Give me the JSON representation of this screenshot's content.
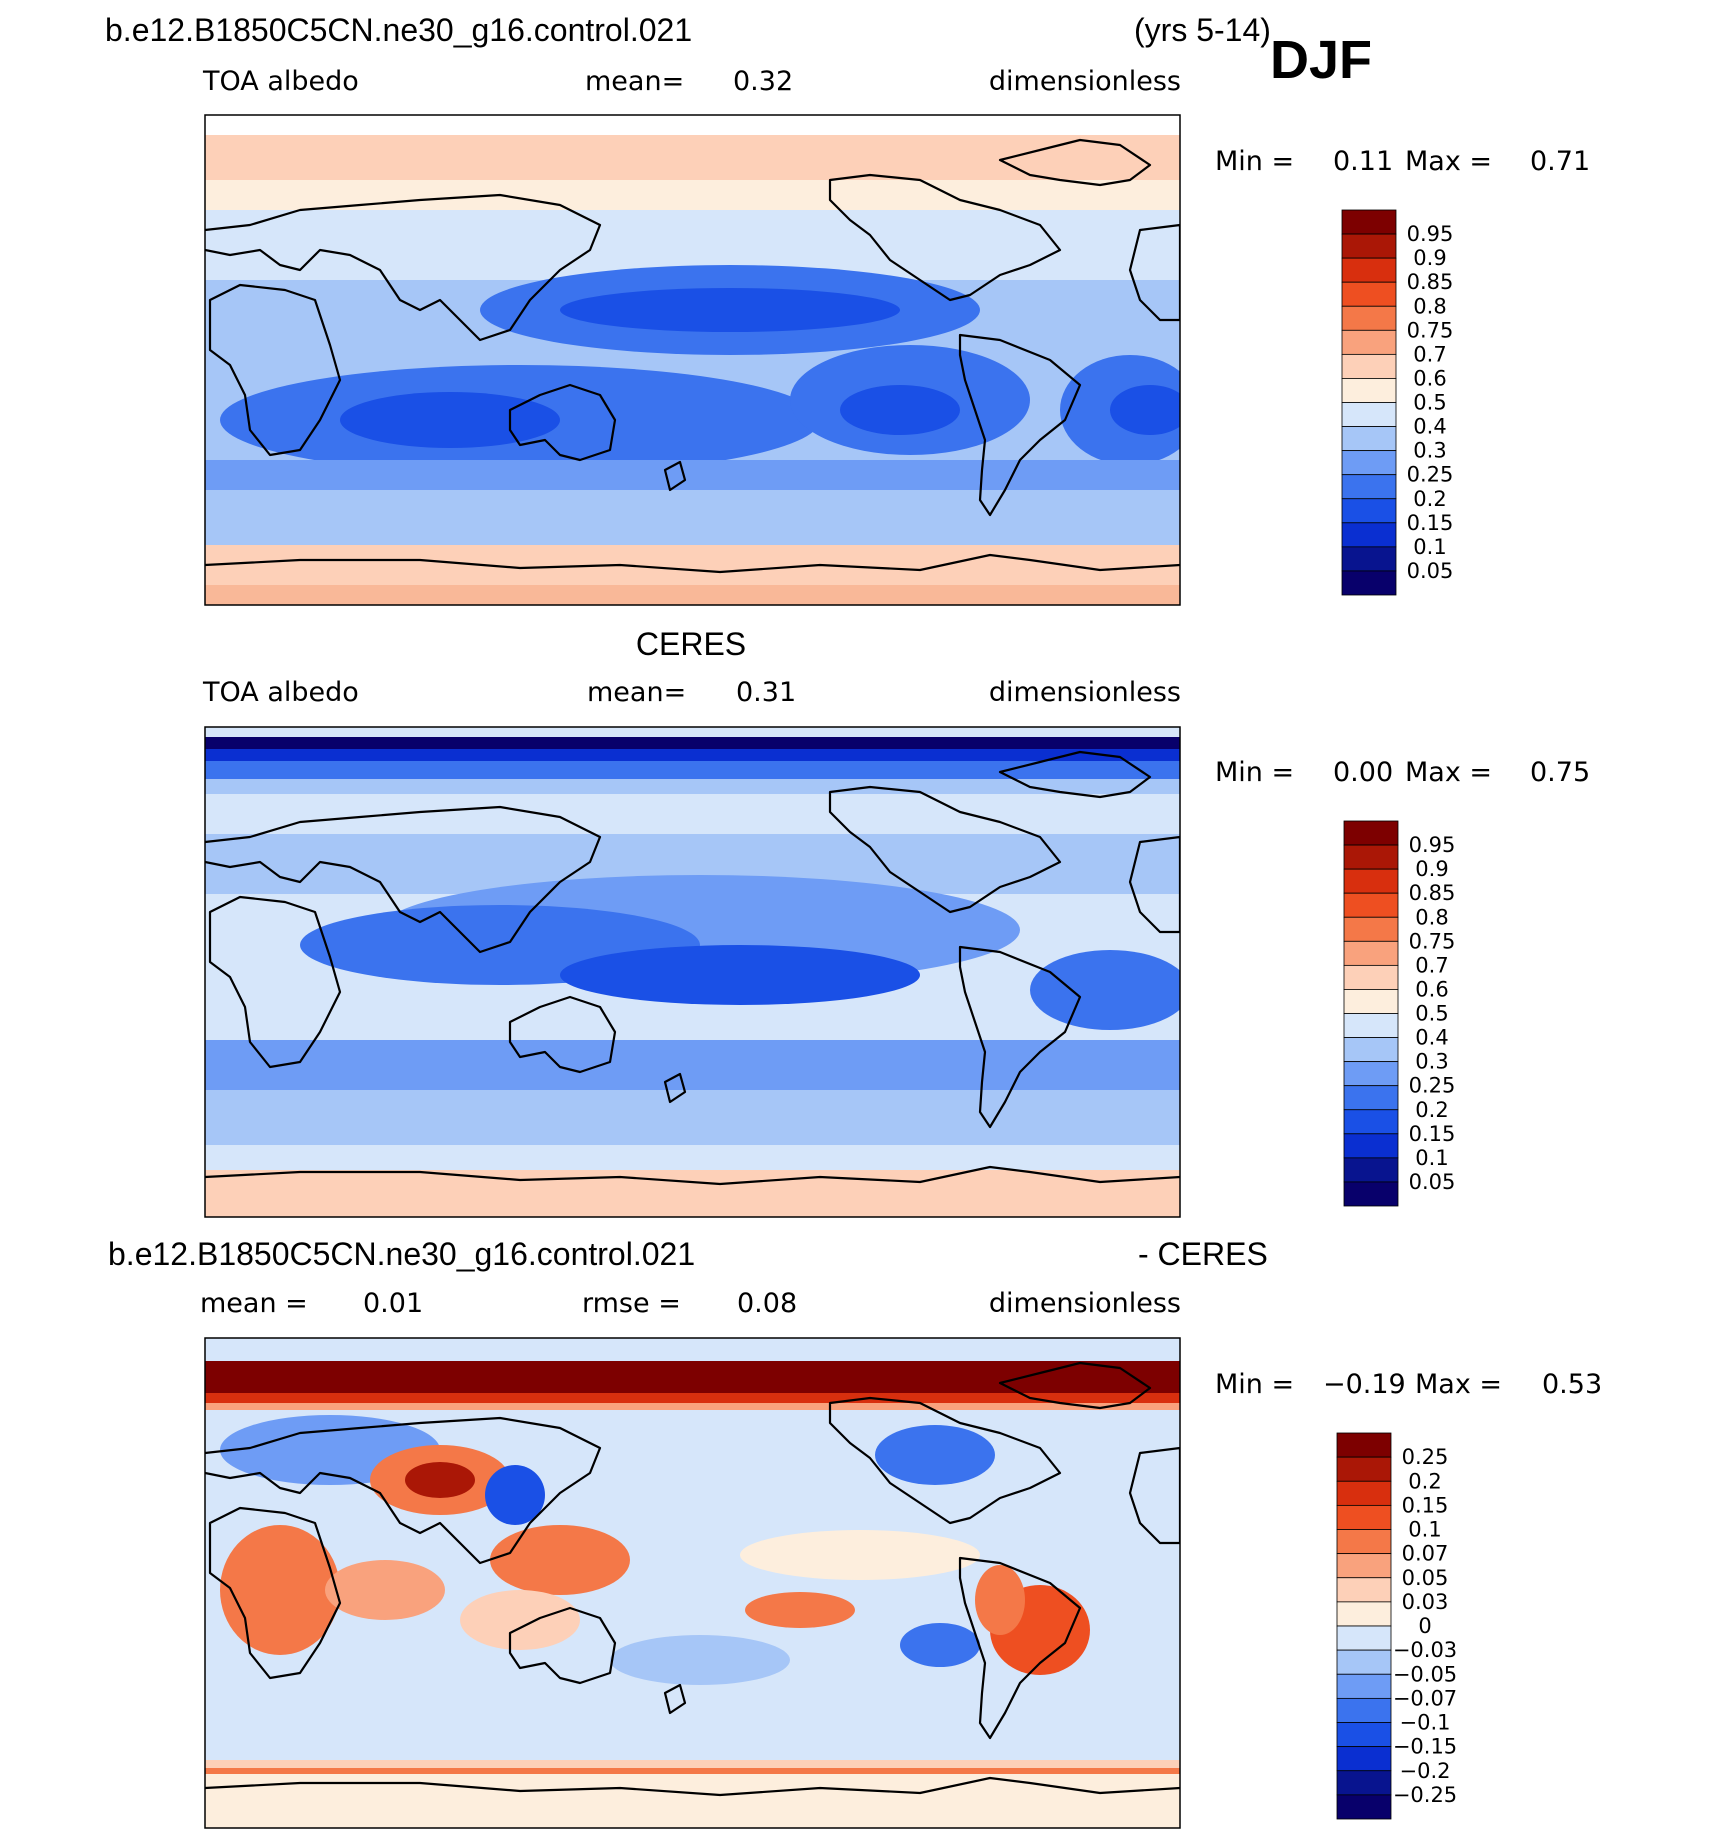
{
  "header": {
    "case_name": "b.e12.B1850C5CN.ne30_g16.control.021",
    "years": "(yrs 5-14)",
    "season": "DJF"
  },
  "panels": [
    {
      "id": "model",
      "title": "",
      "left_label": "TOA  albedo",
      "center_label": "mean=",
      "center_value": "0.32",
      "right_label": "dimensionless",
      "min_label": "Min  =",
      "min_value": "0.11",
      "max_label": "Max  =",
      "max_value": "0.71",
      "colorbar_ticks": [
        "0.95",
        "0.9",
        "0.85",
        "0.8",
        "0.75",
        "0.7",
        "0.6",
        "0.5",
        "0.4",
        "0.3",
        "0.25",
        "0.2",
        "0.15",
        "0.1",
        "0.05"
      ]
    },
    {
      "id": "obs",
      "title": "CERES",
      "left_label": "TOA  albedo",
      "center_label": "mean=",
      "center_value": "0.31",
      "right_label": "dimensionless",
      "min_label": "Min  =",
      "min_value": "0.00",
      "max_label": "Max  =",
      "max_value": "0.75",
      "colorbar_ticks": [
        "0.95",
        "0.9",
        "0.85",
        "0.8",
        "0.75",
        "0.7",
        "0.6",
        "0.5",
        "0.4",
        "0.3",
        "0.25",
        "0.2",
        "0.15",
        "0.1",
        "0.05"
      ]
    },
    {
      "id": "diff",
      "title_left": "b.e12.B1850C5CN.ne30_g16.control.021",
      "title_right": "- CERES",
      "left_label": "mean  =",
      "left_value": "0.01",
      "center_label": "rmse  =",
      "center_value": "0.08",
      "right_label": "dimensionless",
      "min_label": "Min  =",
      "min_value": "−0.19",
      "max_label": "Max  =",
      "max_value": "0.53",
      "colorbar_ticks": [
        "0.25",
        "0.2",
        "0.15",
        "0.1",
        "0.07",
        "0.05",
        "0.03",
        "0",
        "−0.03",
        "−0.05",
        "−0.07",
        "−0.1",
        "−0.15",
        "−0.2",
        "−0.25"
      ]
    }
  ],
  "colors": {
    "palette": [
      "#08006b",
      "#08148f",
      "#0a2fd1",
      "#1a50e6",
      "#3b73ee",
      "#6e9cf5",
      "#a6c6f7",
      "#d6e6fa",
      "#fdeedd",
      "#fdd0b8",
      "#f9a27d",
      "#f47848",
      "#ee4f21",
      "#d82f0e",
      "#aa1706",
      "#7d0000"
    ]
  }
}
